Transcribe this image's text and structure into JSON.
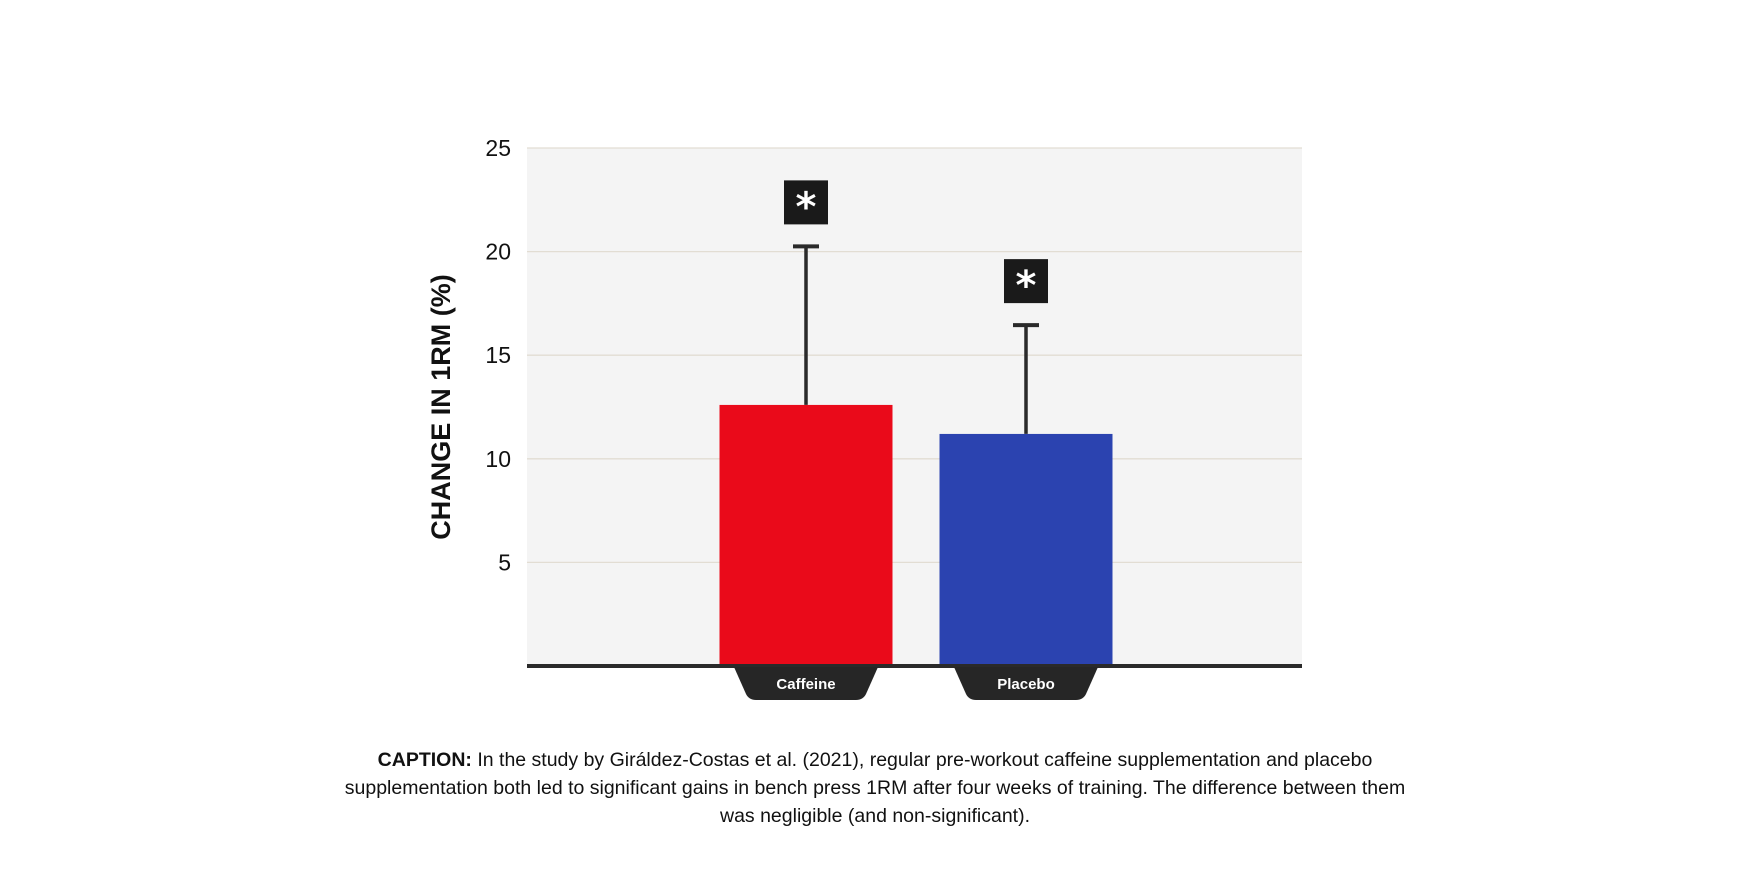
{
  "chart_data": {
    "type": "bar",
    "categories": [
      "Caffeine",
      "Placebo"
    ],
    "values": [
      12.6,
      11.2
    ],
    "error_upper": [
      20.3,
      16.5
    ],
    "significance_markers": [
      "*",
      "*"
    ],
    "colors": [
      "#ea0a1a",
      "#2b43b0"
    ],
    "title": "",
    "xlabel": "",
    "ylabel": "CHANGE IN 1RM (%)",
    "ylim": [
      0,
      25
    ],
    "yticks": [
      5,
      10,
      15,
      20,
      25
    ],
    "grid": true,
    "plot_background": "#f4f4f4"
  },
  "caption": {
    "label": "CAPTION:",
    "text": "In the study by Giráldez-Costas et al. (2021), regular pre-workout caffeine supplementation and placebo supplementation both led to significant gains in bench press 1RM after four weeks of training. The difference between them was negligible (and non-significant)."
  }
}
